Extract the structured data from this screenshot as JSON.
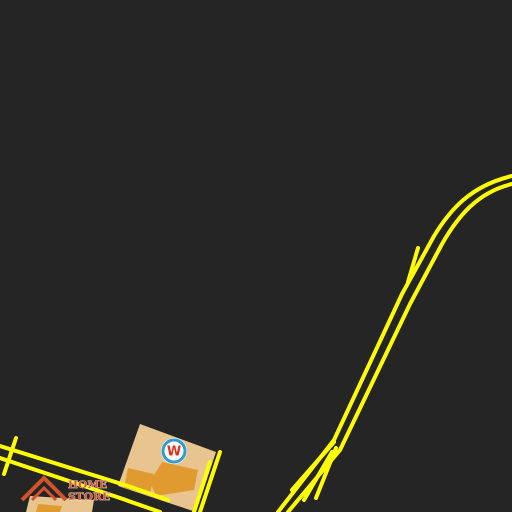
{
  "map": {
    "background_color": "#252525",
    "road_color": "#ffff00",
    "building_fill": "#e8c48f",
    "building_highlight": "#e09a30"
  },
  "poi": {
    "marker_letter": "W",
    "marker_icon": "w-poi-icon",
    "marker_ring_color": "#2f9bd6",
    "marker_letter_color": "#e0301e"
  },
  "store_logo": {
    "icon": "house-roof-icon",
    "line1": "HOME",
    "line2": "STORE",
    "color": "#d2542a"
  }
}
